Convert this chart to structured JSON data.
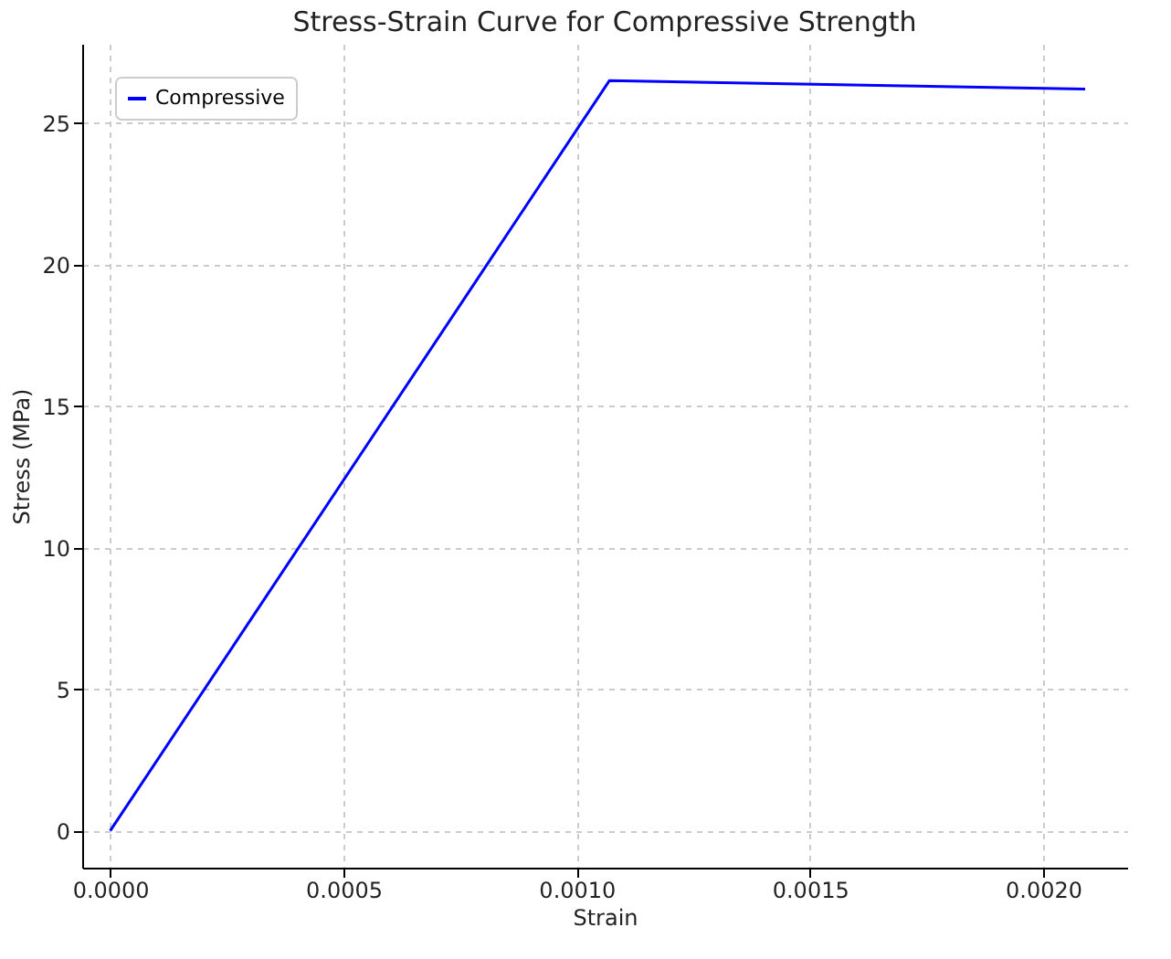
{
  "chart_data": {
    "type": "line",
    "title": "Stress-Strain Curve for Compressive Strength",
    "xlabel": "Strain",
    "ylabel": "Stress (MPa)",
    "x": [
      0,
      0.00107,
      0.00209
    ],
    "series": [
      {
        "name": "Compressive",
        "color": "#0000ff",
        "values": [
          0,
          26.5,
          26.2
        ]
      }
    ],
    "xlim": [
      -6e-05,
      0.00218
    ],
    "xticks": [
      {
        "value": 0,
        "label": "0.0000"
      },
      {
        "value": 0.0005,
        "label": "0.0005"
      },
      {
        "value": 0.001,
        "label": "0.0010"
      },
      {
        "value": 0.0015,
        "label": "0.0015"
      },
      {
        "value": 0.002,
        "label": "0.0020"
      }
    ],
    "ylim": [
      -1.3,
      27.8
    ],
    "yticks": [
      0,
      5,
      10,
      15,
      20,
      25
    ],
    "grid": true,
    "legend": "top left",
    "marker": "none",
    "line_style": "solid"
  }
}
